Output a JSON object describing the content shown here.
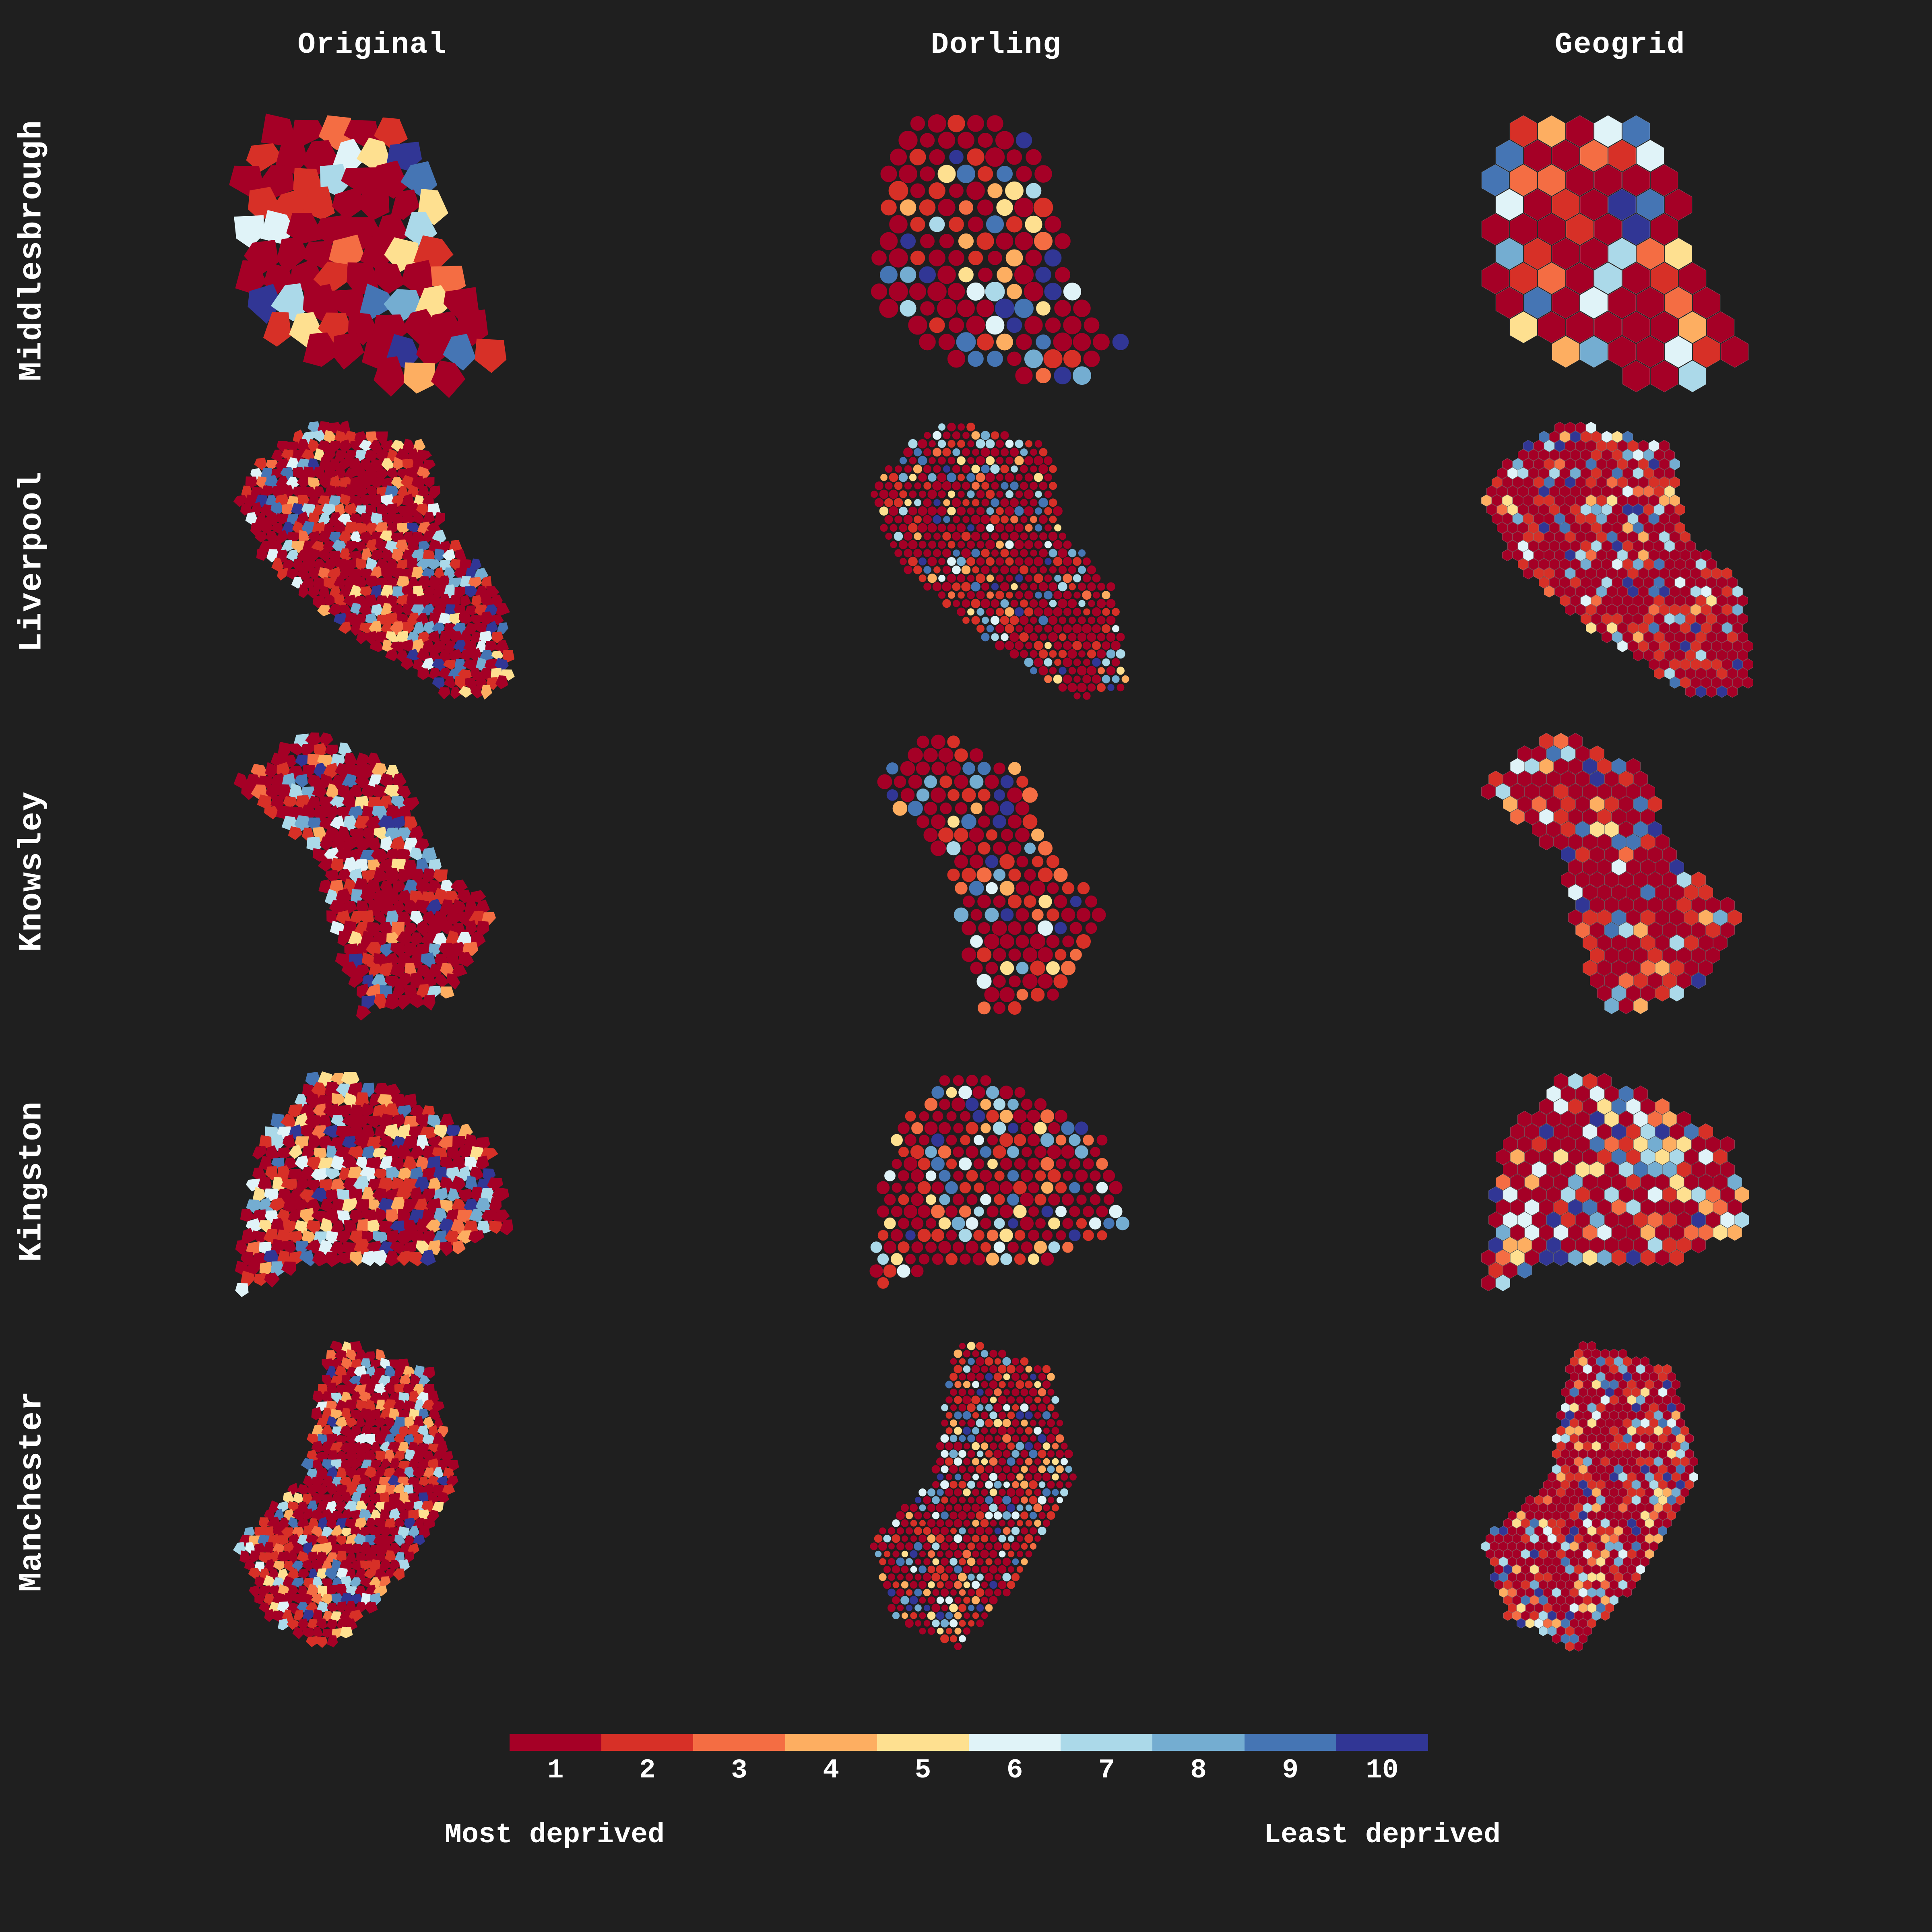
{
  "columns": [
    "Original",
    "Dorling",
    "Geogrid"
  ],
  "rows": [
    "Middlesbrough",
    "Liverpool",
    "Knowsley",
    "Kingston",
    "Manchester"
  ],
  "legend": {
    "values": [
      "1",
      "2",
      "3",
      "4",
      "5",
      "6",
      "7",
      "8",
      "9",
      "10"
    ],
    "colors": [
      "#a50026",
      "#d73027",
      "#f46d43",
      "#fdae61",
      "#fee090",
      "#e0f3f8",
      "#abd9e9",
      "#74add1",
      "#4575b4",
      "#313695"
    ],
    "left_label": "Most deprived",
    "right_label": "Least deprived"
  }
}
